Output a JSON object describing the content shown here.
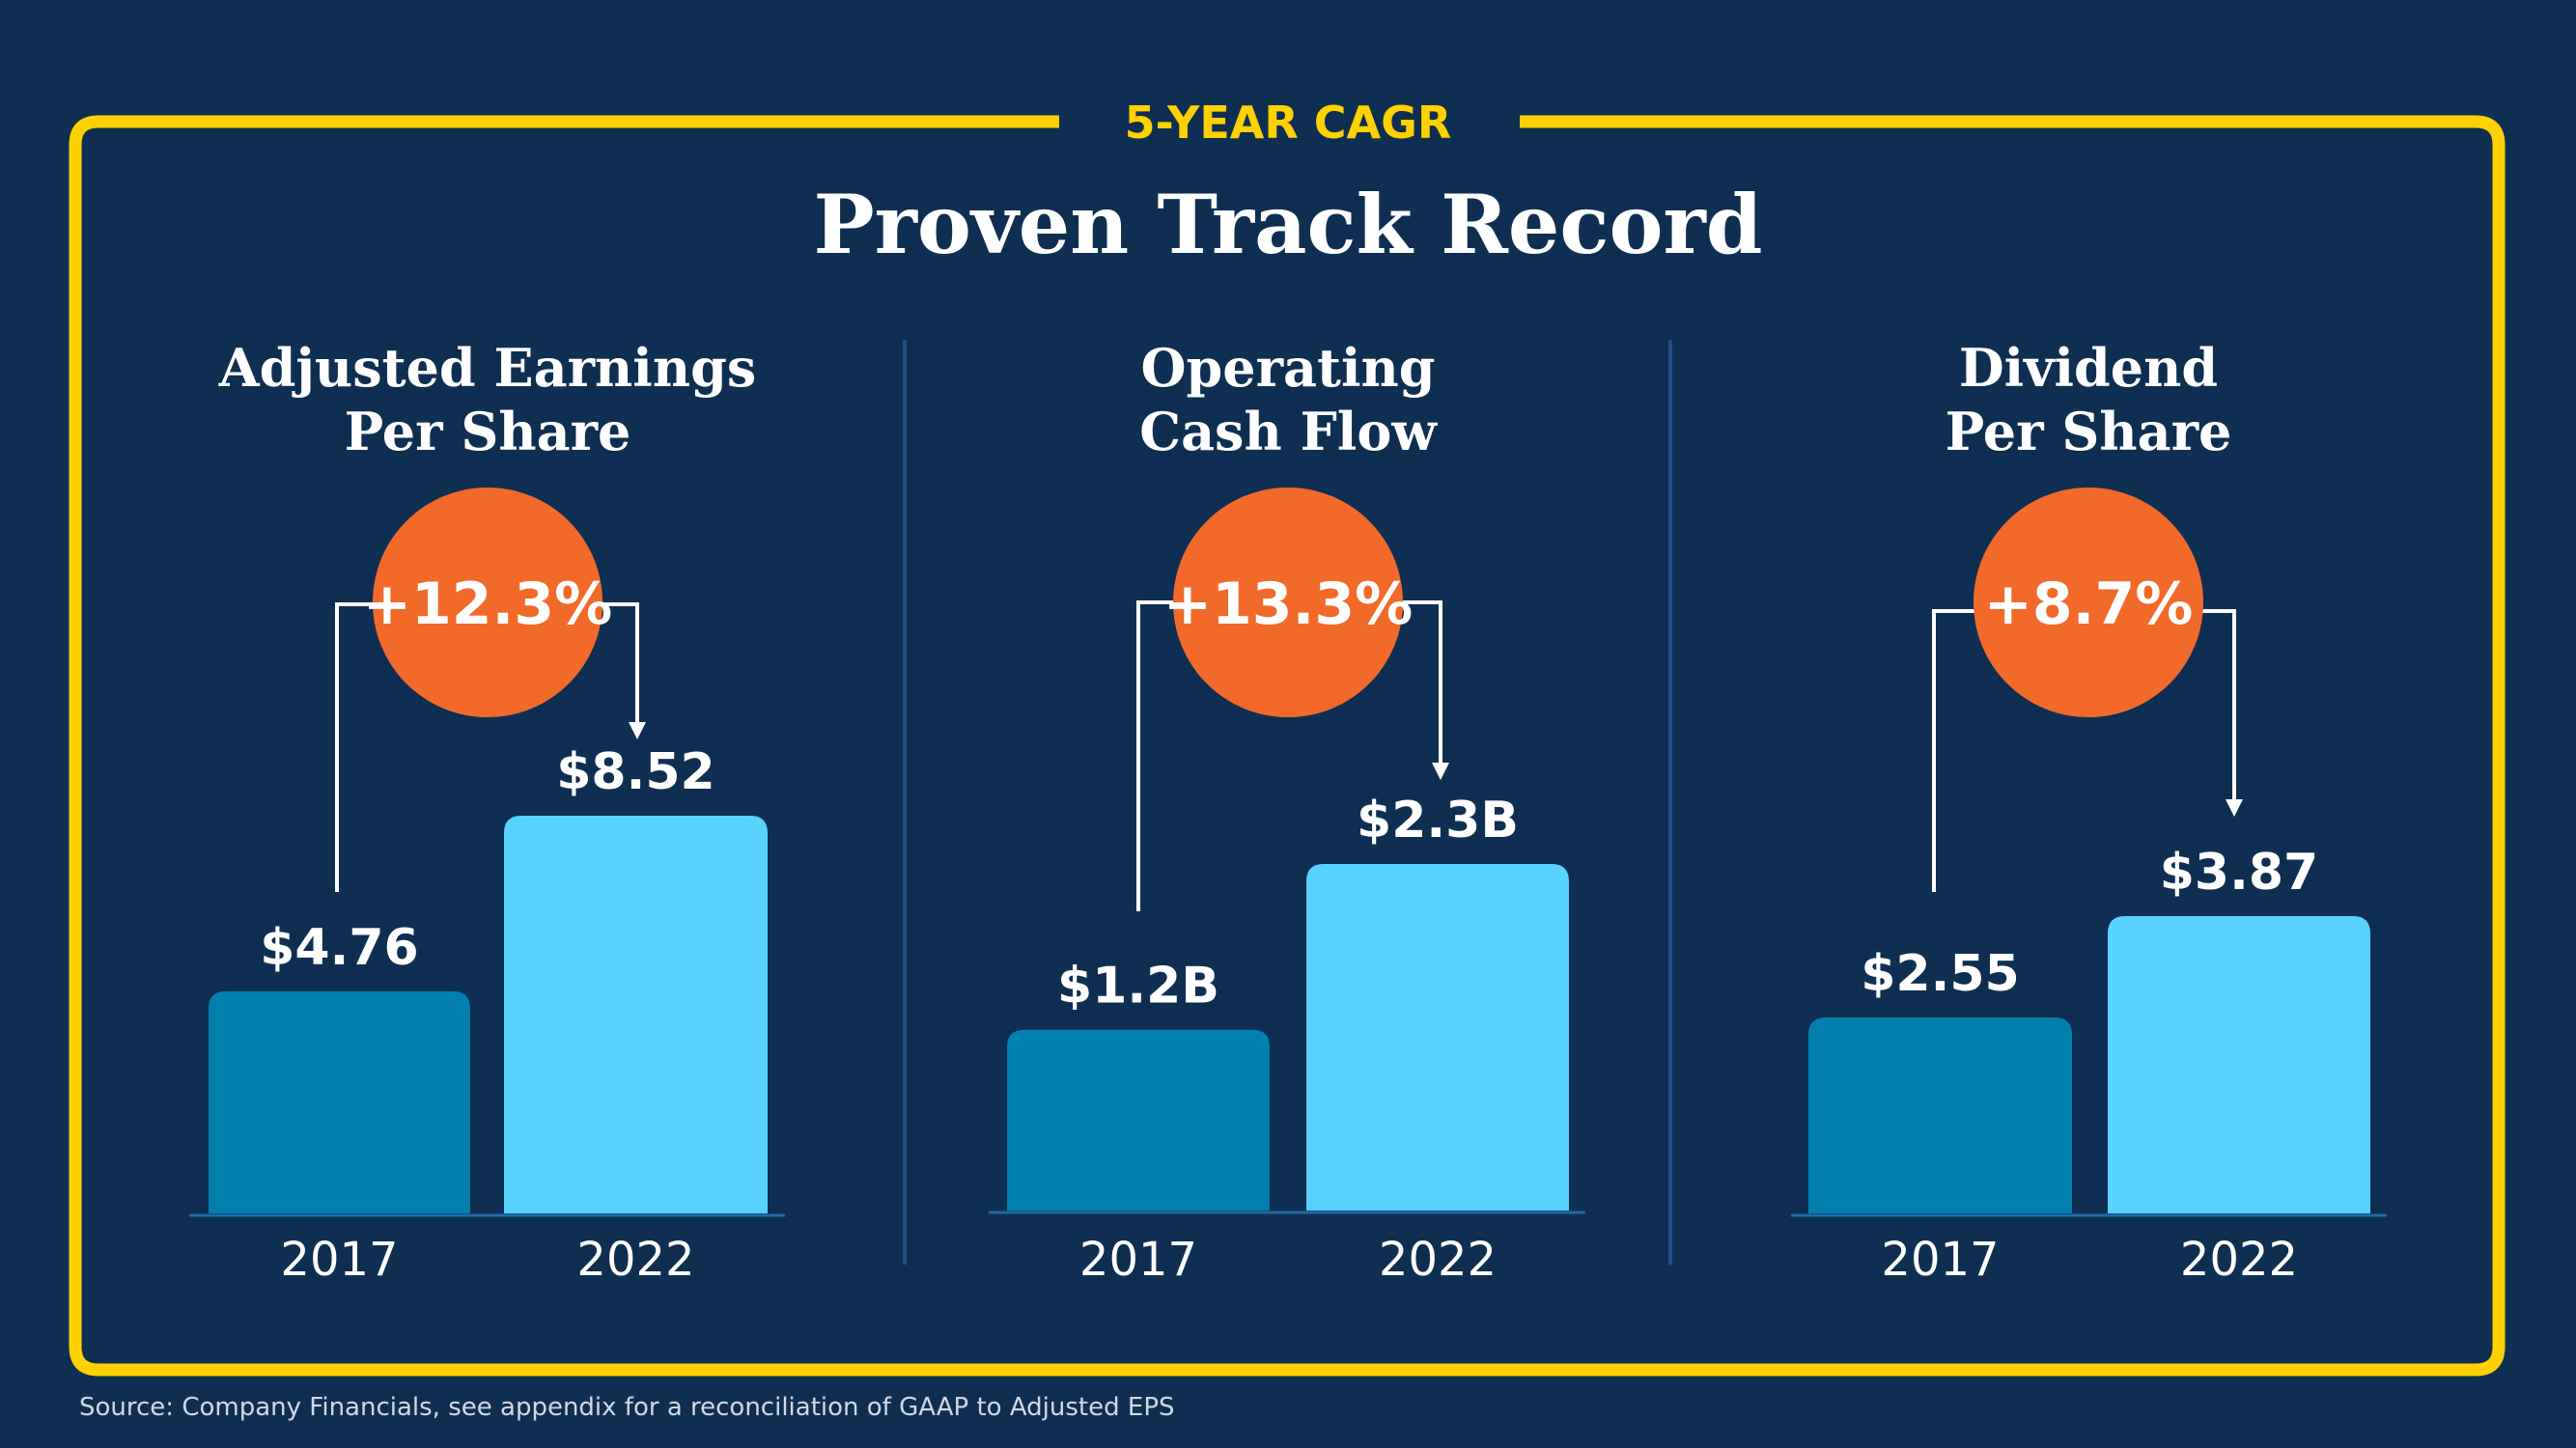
{
  "kicker": "5-YEAR CAGR",
  "title": "Proven Track Record",
  "source": "Source: Company Financials, see appendix for a reconciliation of GAAP to Adjusted EPS",
  "colors": {
    "background": "#0f2f52",
    "frame": "#ffd100",
    "bar_2017": "#0280ad",
    "bar_2022": "#57d3fd",
    "cagr_badge": "#f26a2a",
    "divider": "#1f4f8a"
  },
  "chart_data": [
    {
      "type": "bar",
      "title_lines": [
        "Adjusted Earnings",
        "Per Share"
      ],
      "categories": [
        "2017",
        "2022"
      ],
      "values": [
        4.76,
        8.52
      ],
      "labels": [
        "$4.76",
        "$8.52"
      ],
      "unit": "$",
      "cagr": "+12.3%"
    },
    {
      "type": "bar",
      "title_lines": [
        "Operating",
        "Cash Flow"
      ],
      "categories": [
        "2017",
        "2022"
      ],
      "values": [
        1.2,
        2.3
      ],
      "labels": [
        "$1.2B",
        "$2.3B"
      ],
      "unit": "$B",
      "cagr": "+13.3%"
    },
    {
      "type": "bar",
      "title_lines": [
        "Dividend",
        "Per Share"
      ],
      "categories": [
        "2017",
        "2022"
      ],
      "values": [
        2.55,
        3.87
      ],
      "labels": [
        "$2.55",
        "$3.87"
      ],
      "unit": "$",
      "cagr": "+8.7%"
    }
  ]
}
